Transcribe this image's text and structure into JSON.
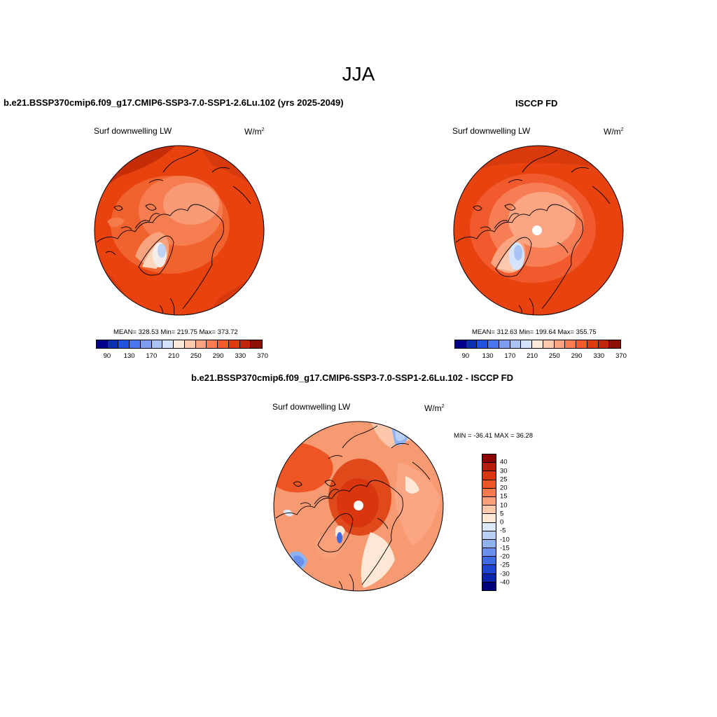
{
  "main_title": "JJA",
  "panels": [
    {
      "title": "b.e21.BSSP370cmip6.f09_g17.CMIP6-SSP3-7.0-SSP1-2.6Lu.102 (yrs 2025-2049)",
      "variable": "Surf downwelling LW",
      "units": "W/m",
      "units_sup": "2",
      "stats": "MEAN= 328.53  Min= 219.75  Max= 373.72"
    },
    {
      "title": "ISCCP FD",
      "variable": "Surf downwelling LW",
      "units": "W/m",
      "units_sup": "2",
      "stats": "MEAN= 312.63  Min= 199.64  Max= 355.75"
    },
    {
      "title": "b.e21.BSSP370cmip6.f09_g17.CMIP6-SSP3-7.0-SSP1-2.6Lu.102 - ISCCP FD",
      "variable": "Surf downwelling LW",
      "units": "W/m",
      "units_sup": "2",
      "stats": "MIN = -36.41 MAX =  36.28"
    }
  ],
  "abs_colorbar": {
    "colors": [
      "#00008b",
      "#0a2fb4",
      "#1f52e0",
      "#4876ee",
      "#7b9cf0",
      "#a9c3f5",
      "#d5e4fa",
      "#fdeadb",
      "#fcc9ac",
      "#fba583",
      "#f77d55",
      "#f15a2c",
      "#e03a10",
      "#bf2508",
      "#8b1005"
    ],
    "ticks": [
      "90",
      "130",
      "170",
      "210",
      "250",
      "290",
      "330",
      "370"
    ]
  },
  "diff_colorbar": {
    "colors": [
      "#8b0000",
      "#b51c0a",
      "#d9360f",
      "#ee5524",
      "#f57b4c",
      "#f9a07a",
      "#fcc7ab",
      "#fde8d6",
      "#dce9fa",
      "#b8d0f6",
      "#8fb2f1",
      "#6890ec",
      "#3e6be4",
      "#1c46cf",
      "#0a25aa",
      "#00007a"
    ],
    "ticks": [
      "40",
      "30",
      "25",
      "20",
      "15",
      "10",
      "5",
      "0",
      "-5",
      "-10",
      "-15",
      "-20",
      "-25",
      "-30",
      "-40"
    ]
  }
}
